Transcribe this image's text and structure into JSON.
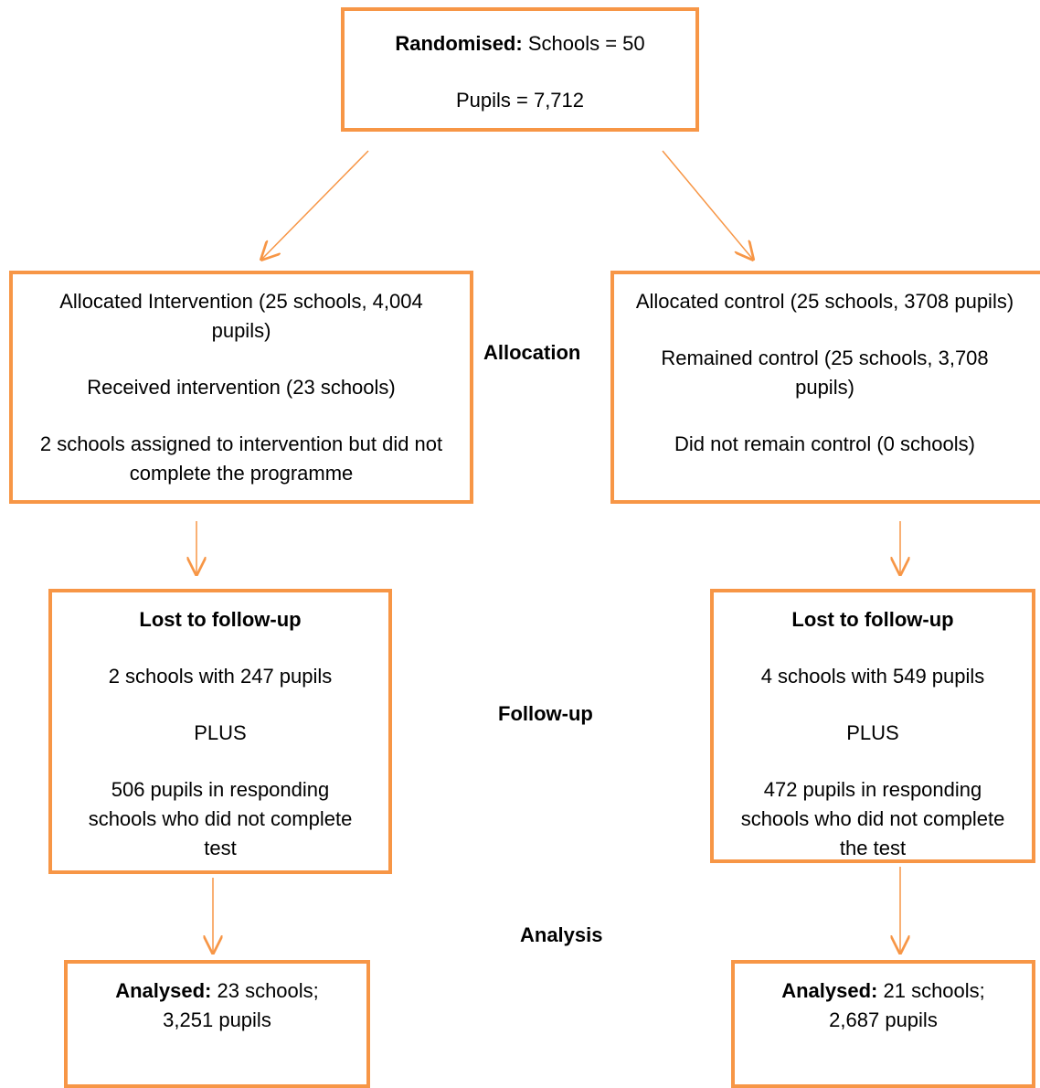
{
  "randomised": {
    "label": "Randomised:",
    "lines": [
      "Schools = 50",
      "Pupils = 7,712"
    ]
  },
  "allocation": {
    "label": "Allocation",
    "intervention": [
      "Allocated Intervention (25 schools, 4,004 pupils)",
      "Received intervention (23 schools)",
      "2 schools assigned to intervention but did not complete the programme"
    ],
    "control": [
      "Allocated control (25 schools, 3708 pupils)",
      "Remained control (25 schools, 3,708 pupils)",
      "Did not remain control (0 schools)"
    ]
  },
  "follow_up": {
    "label": "Follow-up",
    "intervention": {
      "title": "Lost to follow-up",
      "lines": [
        "2 schools with 247 pupils",
        "PLUS",
        "506 pupils in responding schools who did not complete test"
      ]
    },
    "control": {
      "title": "Lost to follow-up",
      "lines": [
        "4 schools with 549 pupils",
        "PLUS",
        "472 pupils in responding schools who did not complete the test"
      ]
    }
  },
  "analysis": {
    "label": "Analysis",
    "intervention": {
      "label": "Analysed:",
      "text": "23 schools; 3,251 pupils"
    },
    "control": {
      "label": "Analysed:",
      "text": "21 schools; 2,687 pupils"
    }
  }
}
